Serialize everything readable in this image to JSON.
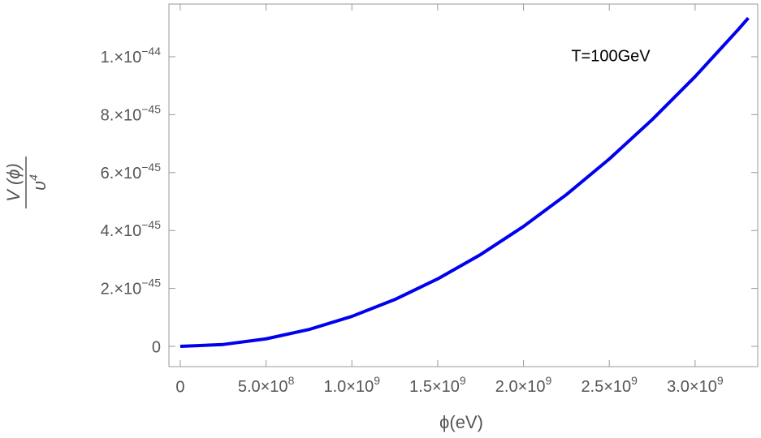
{
  "chart_data": {
    "type": "line",
    "xlabel": "ϕ(eV)",
    "ylabel_numerator": "V (ϕ)",
    "ylabel_denominator": "υ4",
    "annotation": "T=100GeV",
    "x": [
      0,
      250000000,
      500000000,
      750000000,
      1000000000,
      1250000000,
      1500000000,
      1750000000,
      2000000000,
      2250000000,
      2500000000,
      2750000000,
      3000000000,
      3250000000,
      3310000000
    ],
    "series": [
      {
        "color": "#0000ee",
        "values": [
          0,
          6.47e-47,
          2.59e-46,
          5.82e-46,
          1.035e-45,
          1.617e-45,
          2.329e-45,
          3.17e-45,
          4.14e-45,
          5.24e-45,
          6.47e-45,
          7.83e-45,
          9.315e-45,
          1.0932e-44,
          1.134e-44
        ]
      }
    ],
    "xlim": [
      -66000000,
      3365000000
    ],
    "ylim": [
      -7e-46,
      1.182e-44
    ],
    "xticks": [
      0,
      {
        "value": 500000000,
        "label": "5.0×108"
      },
      {
        "value": 1000000000,
        "label": "1.0×109"
      },
      {
        "value": 1500000000,
        "label": "1.5×109"
      },
      {
        "value": 2000000000,
        "label": "2.0×109"
      },
      {
        "value": 2500000000,
        "label": "2.5×109"
      },
      {
        "value": 3000000000,
        "label": "3.0×109"
      }
    ],
    "yticks": [
      0,
      {
        "value": 2e-45,
        "label": "2.×10−45"
      },
      {
        "value": 4e-45,
        "label": "4.×10−45"
      },
      {
        "value": 6e-45,
        "label": "6.×10−45"
      },
      {
        "value": 8e-45,
        "label": "8.×10−45"
      },
      {
        "value": 1e-44,
        "label": "1.×10−44"
      }
    ]
  }
}
